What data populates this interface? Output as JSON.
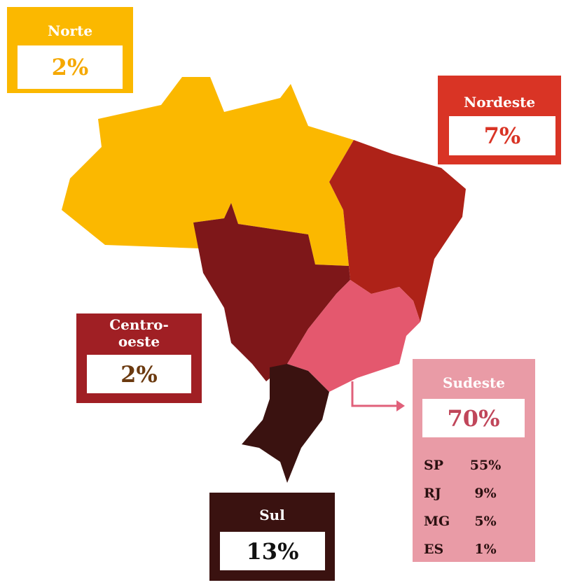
{
  "regions": {
    "norte": {
      "name": "Norte",
      "share": "2%"
    },
    "nordeste": {
      "name": "Nordeste",
      "share": "7%"
    },
    "centro_oeste": {
      "name": "Centro-oeste",
      "share": "2%"
    },
    "sudeste": {
      "name": "Sudeste",
      "share": "70%",
      "states": [
        {
          "code": "SP",
          "share": "55%"
        },
        {
          "code": "RJ",
          "share": "9%"
        },
        {
          "code": "MG",
          "share": "5%"
        },
        {
          "code": "ES",
          "share": "1%"
        }
      ]
    },
    "sul": {
      "name": "Sul",
      "share": "13%"
    }
  }
}
